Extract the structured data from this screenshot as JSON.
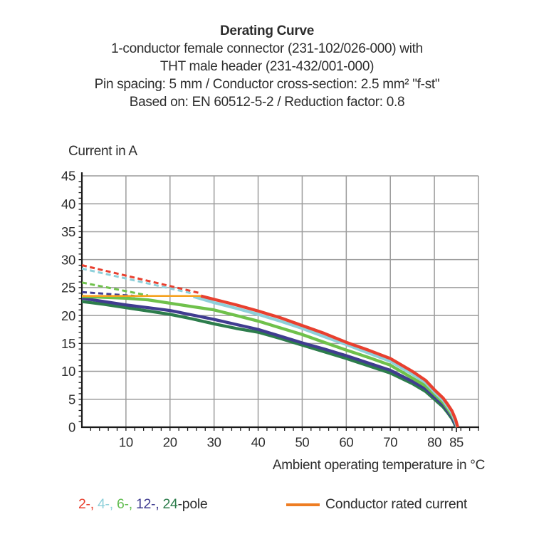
{
  "title": {
    "line1": "Derating Curve",
    "line2": "1-conductor female connector (231-102/026-000) with",
    "line3": "THT male header (231-432/001-000)",
    "line4": "Pin spacing: 5 mm / Conductor cross-section: 2.5 mm² \"f-st\"",
    "line5": "Based on: EN 60512-5-2 / Reduction factor: 0.8"
  },
  "chart_data": {
    "type": "line",
    "title": "Derating Curve",
    "ylabel": "Current in A",
    "xlabel": "Ambient operating temperature in °C",
    "xlim": [
      0,
      90
    ],
    "ylim": [
      0,
      45
    ],
    "grid": true,
    "x_grid": [
      10,
      20,
      30,
      40,
      50,
      60,
      70,
      80,
      90
    ],
    "y_grid": [
      5,
      10,
      15,
      20,
      25,
      30,
      35,
      40,
      45
    ],
    "x_tick_labels": [
      10,
      20,
      30,
      40,
      50,
      60,
      70,
      80,
      85
    ],
    "y_tick_labels": [
      0,
      5,
      10,
      15,
      20,
      25,
      30,
      35,
      40,
      45
    ],
    "x_minor_step": 2,
    "y_minor_step": 1,
    "colors": {
      "grid": "#9c9c9c",
      "axis": "#1a1a1a",
      "text": "#2d2d2d"
    },
    "series": [
      {
        "name": "2-pole above rated current (dashed)",
        "pole": 2,
        "style": "dashed",
        "color": "#e8402f",
        "points": [
          [
            0,
            29.0
          ],
          [
            26.8,
            24.0
          ]
        ]
      },
      {
        "name": "4-pole above rated current (dashed)",
        "pole": 4,
        "style": "dashed",
        "color": "#8ed0da",
        "points": [
          [
            0,
            28.4
          ],
          [
            25.3,
            23.9
          ]
        ]
      },
      {
        "name": "6-pole above rated current (dashed)",
        "pole": 6,
        "style": "dashed",
        "color": "#6fc14b",
        "points": [
          [
            0,
            25.9
          ],
          [
            15,
            23.6
          ]
        ]
      },
      {
        "name": "12-pole above rated current (dashed)",
        "pole": 12,
        "style": "dashed",
        "color": "#403c90",
        "points": [
          [
            0,
            24.2
          ],
          [
            12,
            23.5
          ]
        ]
      },
      {
        "name": "24-pole",
        "pole": 24,
        "style": "solid",
        "color": "#2d7d4c",
        "points": [
          [
            0,
            22.5
          ],
          [
            5,
            22.0
          ],
          [
            10,
            21.4
          ],
          [
            15,
            20.8
          ],
          [
            20,
            20.2
          ],
          [
            25,
            19.4
          ],
          [
            30,
            18.5
          ],
          [
            35,
            17.7
          ],
          [
            40,
            17.0
          ],
          [
            45,
            15.9
          ],
          [
            50,
            14.7
          ],
          [
            55,
            13.5
          ],
          [
            60,
            12.3
          ],
          [
            65,
            11.0
          ],
          [
            70,
            9.7
          ],
          [
            75,
            7.8
          ],
          [
            78,
            6.4
          ],
          [
            80,
            5.0
          ],
          [
            82,
            3.6
          ],
          [
            83,
            2.6
          ],
          [
            84,
            1.5
          ],
          [
            84.5,
            0.7
          ],
          [
            84.9,
            0
          ]
        ]
      },
      {
        "name": "12-pole",
        "pole": 12,
        "style": "solid",
        "color": "#403c90",
        "points": [
          [
            0,
            23.1
          ],
          [
            5,
            22.5
          ],
          [
            10,
            21.9
          ],
          [
            15,
            21.4
          ],
          [
            20,
            20.9
          ],
          [
            25,
            20.1
          ],
          [
            30,
            19.3
          ],
          [
            35,
            18.4
          ],
          [
            40,
            17.5
          ],
          [
            45,
            16.3
          ],
          [
            50,
            15.1
          ],
          [
            55,
            14.0
          ],
          [
            60,
            12.8
          ],
          [
            65,
            11.5
          ],
          [
            70,
            10.2
          ],
          [
            75,
            8.2
          ],
          [
            78,
            6.9
          ],
          [
            80,
            5.4
          ],
          [
            82,
            4.0
          ],
          [
            83,
            2.9
          ],
          [
            84,
            1.8
          ],
          [
            84.6,
            0.8
          ],
          [
            85,
            0
          ]
        ]
      },
      {
        "name": "6-pole",
        "pole": 6,
        "style": "solid",
        "color": "#6fc14b",
        "points": [
          [
            0,
            23.4
          ],
          [
            10,
            23.1
          ],
          [
            15,
            22.8
          ],
          [
            20,
            22.2
          ],
          [
            25,
            21.6
          ],
          [
            30,
            21.0
          ],
          [
            35,
            20.0
          ],
          [
            40,
            19.0
          ],
          [
            45,
            17.8
          ],
          [
            50,
            16.6
          ],
          [
            55,
            15.2
          ],
          [
            60,
            13.8
          ],
          [
            65,
            12.5
          ],
          [
            70,
            11.1
          ],
          [
            75,
            8.8
          ],
          [
            78,
            7.4
          ],
          [
            80,
            5.9
          ],
          [
            82,
            4.4
          ],
          [
            83,
            3.3
          ],
          [
            84,
            2.1
          ],
          [
            84.8,
            0.9
          ],
          [
            85.1,
            0
          ]
        ]
      },
      {
        "name": "4-pole",
        "pole": 4,
        "style": "solid",
        "color": "#8ed0da",
        "points": [
          [
            25.3,
            23.4
          ],
          [
            30,
            22.3
          ],
          [
            35,
            21.3
          ],
          [
            40,
            20.2
          ],
          [
            45,
            19.0
          ],
          [
            50,
            17.7
          ],
          [
            55,
            16.2
          ],
          [
            60,
            14.8
          ],
          [
            65,
            13.3
          ],
          [
            70,
            11.8
          ],
          [
            75,
            9.5
          ],
          [
            78,
            8.0
          ],
          [
            80,
            6.3
          ],
          [
            82,
            4.8
          ],
          [
            83,
            3.7
          ],
          [
            84,
            2.5
          ],
          [
            84.7,
            1.1
          ],
          [
            85.2,
            0
          ]
        ]
      },
      {
        "name": "2-pole",
        "pole": 2,
        "style": "solid",
        "color": "#e8402f",
        "points": [
          [
            27,
            23.5
          ],
          [
            30,
            22.9
          ],
          [
            35,
            21.9
          ],
          [
            40,
            20.8
          ],
          [
            45,
            19.6
          ],
          [
            50,
            18.2
          ],
          [
            55,
            16.8
          ],
          [
            60,
            15.2
          ],
          [
            65,
            13.8
          ],
          [
            70,
            12.3
          ],
          [
            75,
            10.0
          ],
          [
            78,
            8.4
          ],
          [
            80,
            6.7
          ],
          [
            82,
            5.2
          ],
          [
            83,
            4.1
          ],
          [
            84,
            2.9
          ],
          [
            84.8,
            1.4
          ],
          [
            85.3,
            0
          ]
        ]
      },
      {
        "name": "Conductor rated current",
        "role": "rated",
        "style": "solid",
        "color": "#f5a11f",
        "points": [
          [
            0,
            23.5
          ],
          [
            27,
            23.5
          ]
        ]
      }
    ]
  },
  "legend": {
    "poles": [
      {
        "text": "2-, ",
        "color": "#e8402f"
      },
      {
        "text": "4-, ",
        "color": "#8ed0da"
      },
      {
        "text": "6-, ",
        "color": "#62bd51"
      },
      {
        "text": "12-, ",
        "color": "#403c90"
      },
      {
        "text": "24",
        "color": "#2d7d4c"
      }
    ],
    "suffix": "-pole",
    "suffix_color": "#2d2d2d",
    "rated_label": "Conductor rated current",
    "rated_color": "#ee7d23",
    "text_color": "#2d2d2d"
  }
}
